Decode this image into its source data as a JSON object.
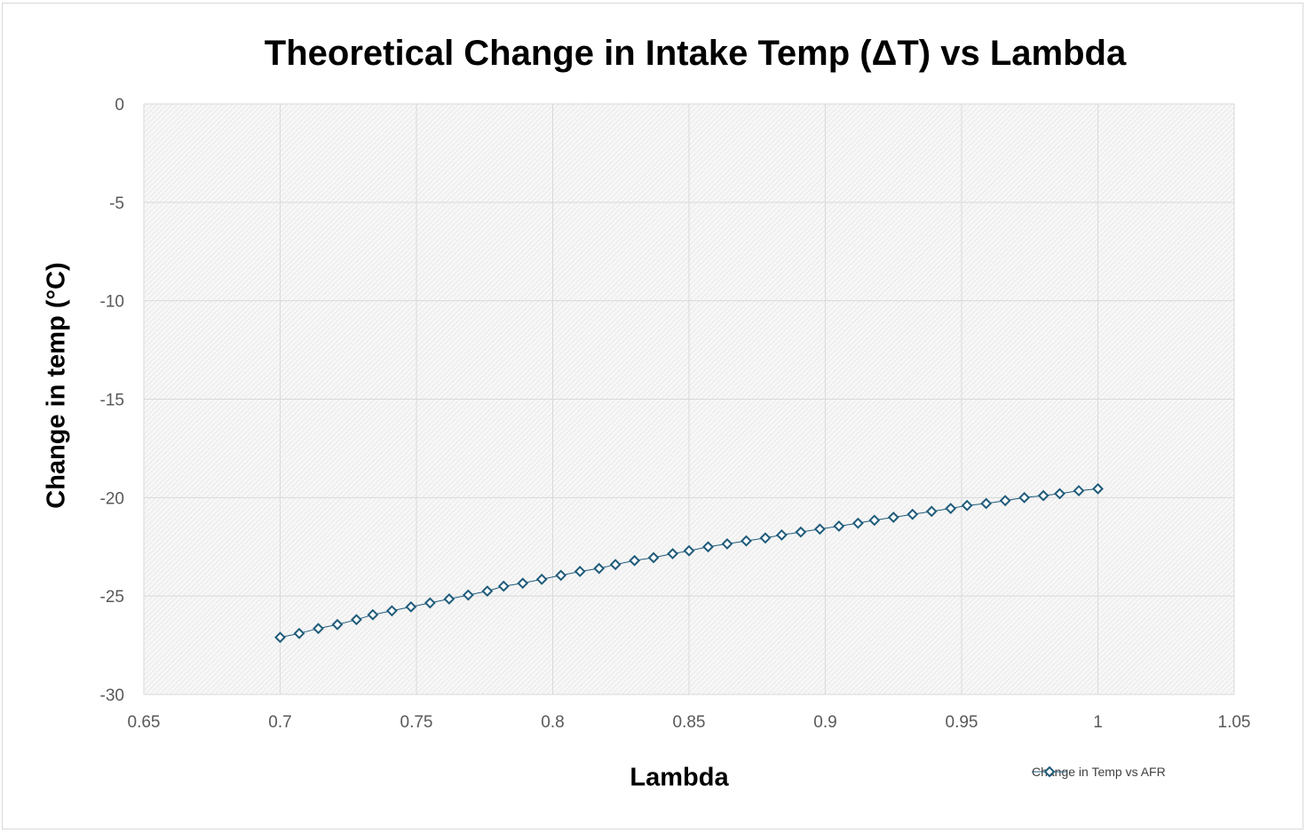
{
  "chart_data": {
    "type": "scatter",
    "title": "Theoretical Change in Intake Temp (ΔT) vs Lambda",
    "xlabel": "Lambda",
    "ylabel": "Change in temp (°C)",
    "xlim": [
      0.65,
      1.05
    ],
    "ylim": [
      -30,
      0
    ],
    "xticks": [
      "0.65",
      "0.7",
      "0.75",
      "0.8",
      "0.85",
      "0.9",
      "0.95",
      "1",
      "1.05"
    ],
    "yticks": [
      "0",
      "-5",
      "-10",
      "-15",
      "-20",
      "-25",
      "-30"
    ],
    "grid": true,
    "legend_position": "bottom-right",
    "colors": {
      "series": "#1f5b7a",
      "grid": "#d9d9d9",
      "plot_fill": "#f2f2f2"
    },
    "series": [
      {
        "name": "Change in Temp vs AFR",
        "marker": "diamond",
        "x": [
          0.7,
          0.707,
          0.714,
          0.721,
          0.728,
          0.734,
          0.741,
          0.748,
          0.755,
          0.762,
          0.769,
          0.776,
          0.782,
          0.789,
          0.796,
          0.803,
          0.81,
          0.817,
          0.823,
          0.83,
          0.837,
          0.844,
          0.85,
          0.857,
          0.864,
          0.871,
          0.878,
          0.884,
          0.891,
          0.898,
          0.905,
          0.912,
          0.918,
          0.925,
          0.932,
          0.939,
          0.946,
          0.952,
          0.959,
          0.966,
          0.973,
          0.98,
          0.986,
          0.993,
          1.0
        ],
        "y": [
          -27.1,
          -26.9,
          -26.65,
          -26.45,
          -26.2,
          -25.95,
          -25.75,
          -25.55,
          -25.35,
          -25.15,
          -24.95,
          -24.75,
          -24.5,
          -24.35,
          -24.15,
          -23.95,
          -23.75,
          -23.6,
          -23.4,
          -23.2,
          -23.05,
          -22.85,
          -22.7,
          -22.5,
          -22.35,
          -22.2,
          -22.05,
          -21.9,
          -21.75,
          -21.6,
          -21.45,
          -21.3,
          -21.15,
          -21.0,
          -20.85,
          -20.7,
          -20.55,
          -20.4,
          -20.3,
          -20.15,
          -20.0,
          -19.9,
          -19.8,
          -19.65,
          -19.55
        ]
      }
    ]
  }
}
